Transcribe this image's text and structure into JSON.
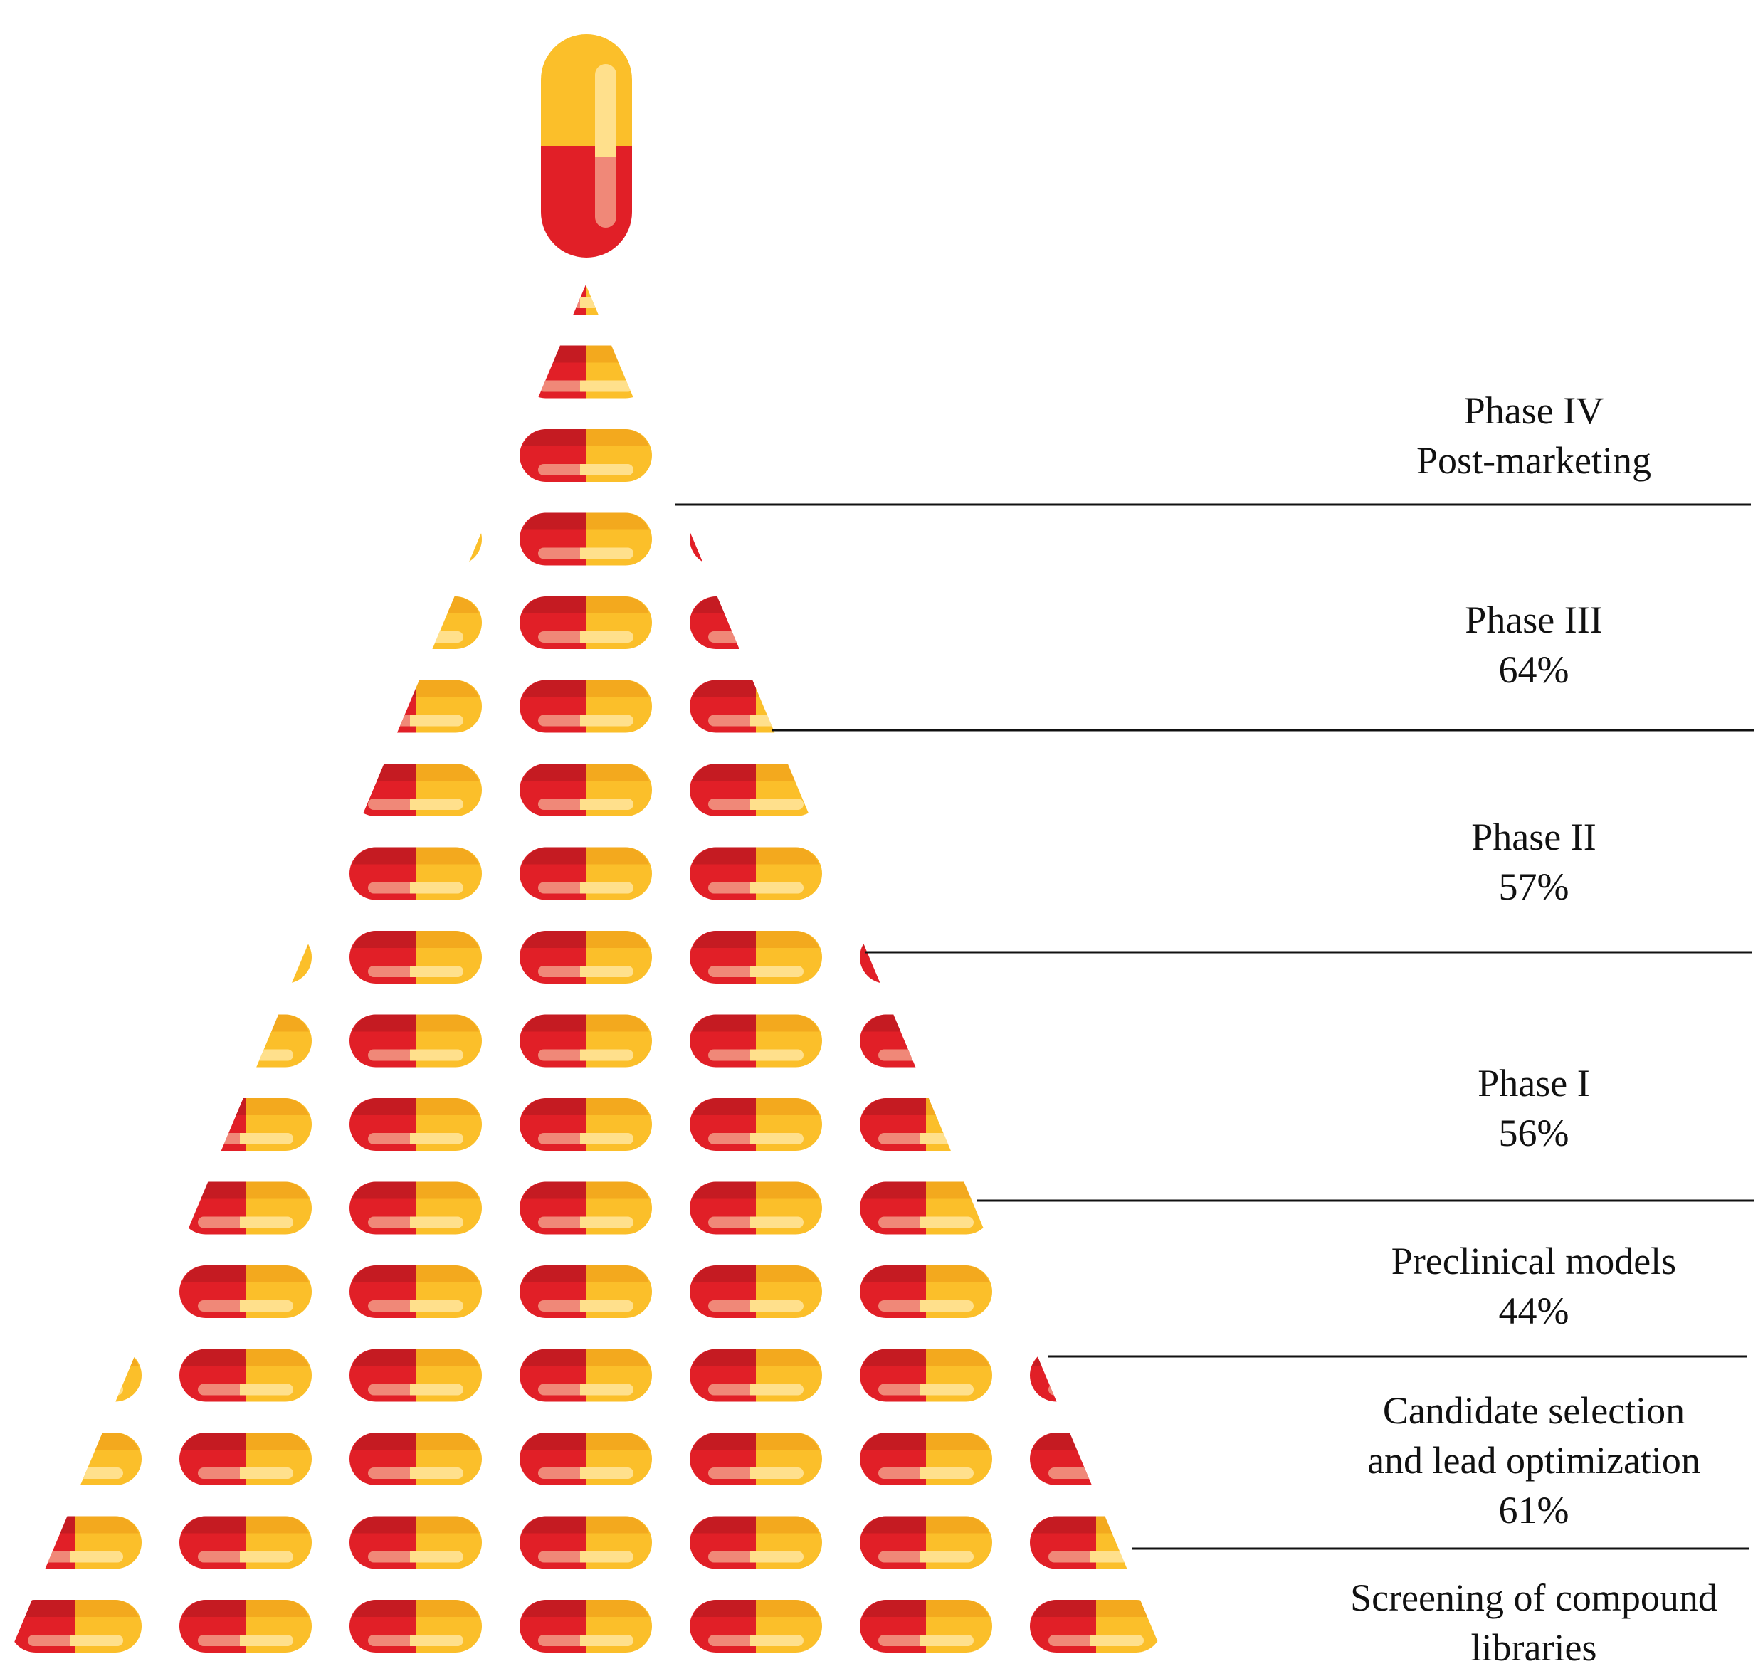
{
  "colors": {
    "red": "#e11f27",
    "red_dark": "#c51b22",
    "yellow": "#fbbf2a",
    "yellow_dark": "#f3a91e",
    "highlight_red": "#f08878",
    "highlight_yellow": "#ffe08c",
    "line": "#111111"
  },
  "stages": [
    {
      "id": "phase-4",
      "line1": "Phase IV",
      "line2": "Post-marketing"
    },
    {
      "id": "phase-3",
      "line1": "Phase III",
      "line2": "64%"
    },
    {
      "id": "phase-2",
      "line1": "Phase II",
      "line2": "57%"
    },
    {
      "id": "phase-1",
      "line1": "Phase I",
      "line2": "56%"
    },
    {
      "id": "preclinical",
      "line1": "Preclinical models",
      "line2": "44%"
    },
    {
      "id": "candidate",
      "line1": "Candidate selection",
      "line2": "and lead optimization",
      "line3": "61%"
    },
    {
      "id": "screening",
      "line1": "Screening of compound",
      "line2": "libraries"
    }
  ]
}
